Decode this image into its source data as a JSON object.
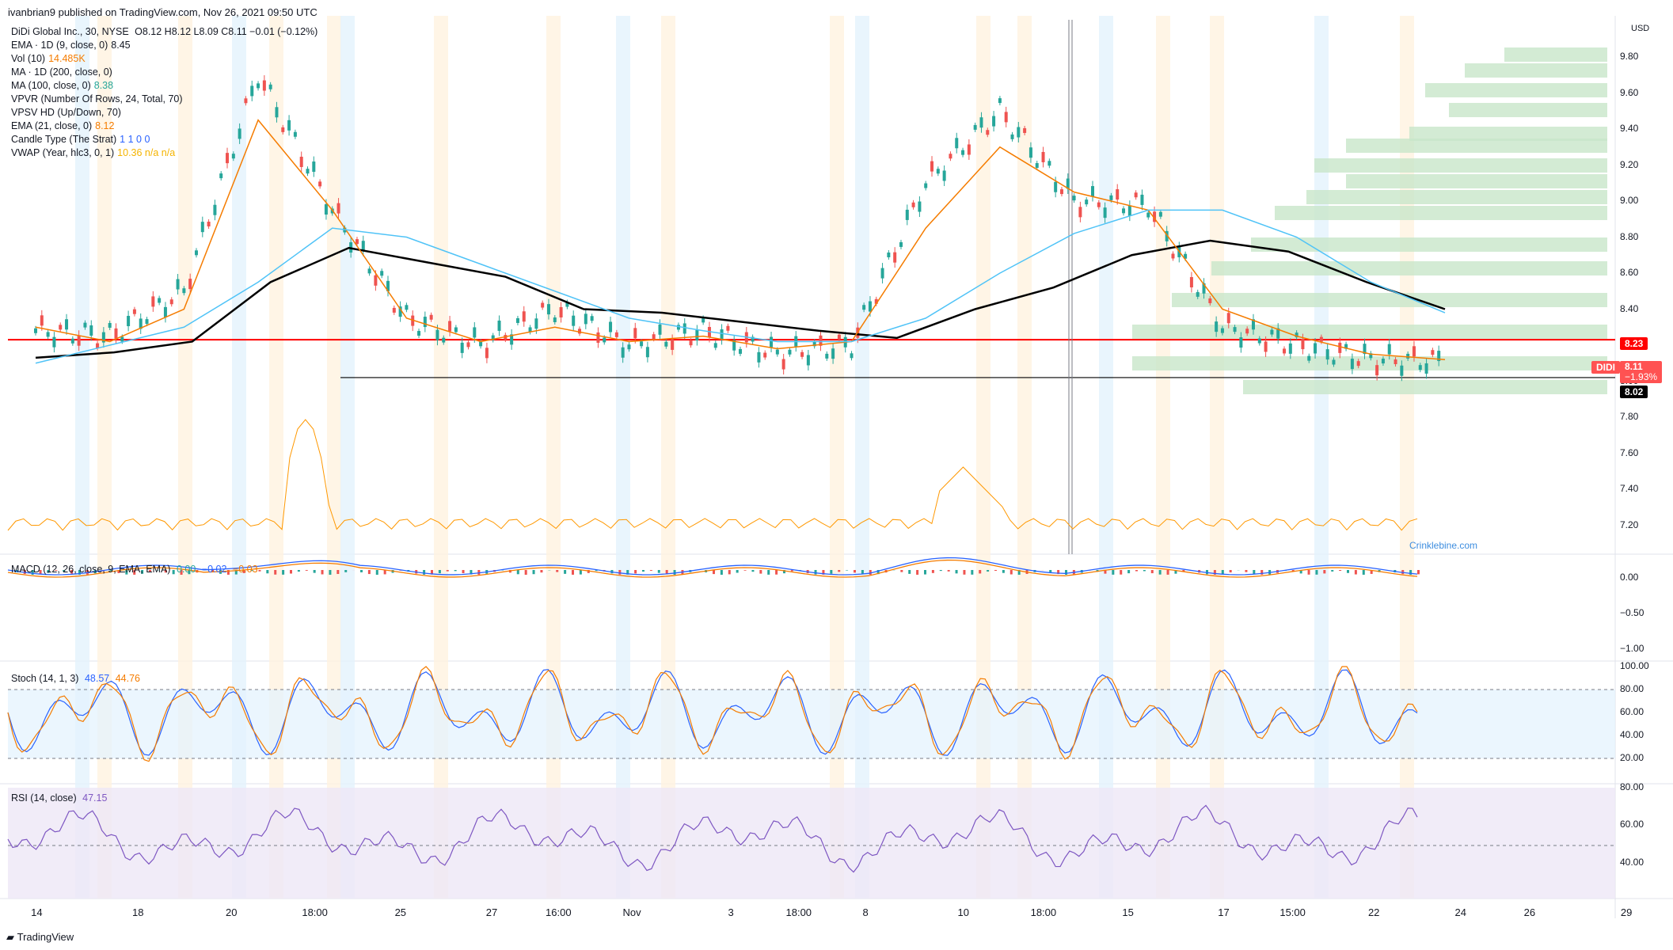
{
  "header": {
    "published": "ivanbrian9 published on TradingView.com, Nov 26, 2021 09:50 UTC",
    "symbol": "DiDi Global Inc., 30, NYSE",
    "ohlc": "O8.12  H8.12  L8.09  C8.11  −0.01 (−0.12%)"
  },
  "legend": [
    {
      "label": "EMA · 1D (9, close, 0)",
      "value": "8.45",
      "color": "#131722"
    },
    {
      "label": "Vol (10)",
      "value": "14.485K",
      "color": "#f57c00"
    },
    {
      "label": "MA · 1D (200, close, 0)",
      "value": "",
      "color": "#131722"
    },
    {
      "label": "MA (100, close, 0)",
      "value": "8.38",
      "color": "#26a69a"
    },
    {
      "label": "VPVR (Number Of Rows, 24, Total, 70)",
      "value": "",
      "color": "#131722"
    },
    {
      "label": "VPSV HD (Up/Down, 70)",
      "value": "",
      "color": "#131722"
    },
    {
      "label": "EMA (21, close, 0)",
      "value": "8.12",
      "color": "#f57c00"
    },
    {
      "label": "Candle Type (The Strat)",
      "value": "1  1  0  0",
      "color": "#2962ff"
    },
    {
      "label": "VWAP (Year, hlc3, 0, 1)",
      "value": "10.36  n/a  n/a",
      "color": "#f5b400"
    }
  ],
  "currency": "USD",
  "price_axis": [
    "9.80",
    "9.60",
    "9.40",
    "9.20",
    "9.00",
    "8.80",
    "8.60",
    "8.40",
    "8.20",
    "8.00",
    "7.80",
    "7.60",
    "7.40",
    "7.20"
  ],
  "price_tags": {
    "level_red": "8.23",
    "symbol": "DIDI",
    "last": "8.11",
    "change": "−1.93%",
    "level_black": "8.02"
  },
  "macd": {
    "label": "MACD (12, 26, close, 9, EMA, EMA)",
    "values": [
      "0.00",
      "−0.02",
      "−0.03"
    ],
    "axis": [
      "0.00",
      "−0.50",
      "−1.00"
    ]
  },
  "stoch": {
    "label": "Stoch (14, 1, 3)",
    "values": [
      "48.57",
      "44.76"
    ],
    "axis": [
      "100.00",
      "80.00",
      "60.00",
      "40.00",
      "20.00"
    ]
  },
  "rsi": {
    "label": "RSI (14, close)",
    "value": "47.15",
    "axis": [
      "80.00",
      "60.00",
      "40.00"
    ]
  },
  "x_axis": [
    {
      "t": "14",
      "x": 33
    },
    {
      "t": "18",
      "x": 124
    },
    {
      "t": "20",
      "x": 208
    },
    {
      "t": "18:00",
      "x": 283
    },
    {
      "t": "25",
      "x": 360
    },
    {
      "t": "27",
      "x": 442
    },
    {
      "t": "16:00",
      "x": 502
    },
    {
      "t": "Nov",
      "x": 568
    },
    {
      "t": "3",
      "x": 657
    },
    {
      "t": "18:00",
      "x": 718
    },
    {
      "t": "8",
      "x": 778
    },
    {
      "t": "10",
      "x": 866
    },
    {
      "t": "18:00",
      "x": 938
    },
    {
      "t": "15",
      "x": 1014
    },
    {
      "t": "17",
      "x": 1100
    },
    {
      "t": "15:00",
      "x": 1162
    },
    {
      "t": "22",
      "x": 1235
    },
    {
      "t": "24",
      "x": 1313
    },
    {
      "t": "26",
      "x": 1375
    },
    {
      "t": "29",
      "x": 1462
    }
  ],
  "watermark": "Crinklebine.com",
  "footer": "TradingView",
  "chart_data": {
    "type": "line",
    "title": "DiDi Global Inc., 30, NYSE",
    "ylabel": "USD",
    "ylim": [
      7.1,
      9.9
    ],
    "series": [
      {
        "name": "Price",
        "x": [
          "Oct 14",
          "Oct 18",
          "Oct 20",
          "Oct 21",
          "Oct 25",
          "Oct 27",
          "Oct 28",
          "Nov 1",
          "Nov 3",
          "Nov 5",
          "Nov 8",
          "Nov 10",
          "Nov 11",
          "Nov 12",
          "Nov 15",
          "Nov 17",
          "Nov 18",
          "Nov 22",
          "Nov 24",
          "Nov 25"
        ],
        "values": [
          8.28,
          8.25,
          8.5,
          9.7,
          8.95,
          8.35,
          8.2,
          8.4,
          8.2,
          8.28,
          8.15,
          8.2,
          9.1,
          9.5,
          9.0,
          8.98,
          8.3,
          8.2,
          8.12,
          8.11
        ]
      },
      {
        "name": "EMA · 1D (9, close, 0)",
        "x": [
          "Oct 14",
          "Oct 18",
          "Oct 20",
          "Oct 21",
          "Oct 25",
          "Oct 27",
          "Oct 28",
          "Nov 1",
          "Nov 3",
          "Nov 5",
          "Nov 8",
          "Nov 10",
          "Nov 11",
          "Nov 12",
          "Nov 15",
          "Nov 17",
          "Nov 18",
          "Nov 22",
          "Nov 24"
        ],
        "values": [
          8.13,
          8.16,
          8.22,
          8.55,
          8.74,
          8.66,
          8.58,
          8.4,
          8.38,
          8.33,
          8.28,
          8.24,
          8.4,
          8.52,
          8.7,
          8.78,
          8.72,
          8.55,
          8.4
        ]
      },
      {
        "name": "EMA (21, close, 0)",
        "x": [
          "Oct 14",
          "Oct 18",
          "Oct 20",
          "Oct 21",
          "Oct 25",
          "Oct 27",
          "Oct 28",
          "Nov 1",
          "Nov 3",
          "Nov 5",
          "Nov 8",
          "Nov 10",
          "Nov 11",
          "Nov 12",
          "Nov 15",
          "Nov 17",
          "Nov 18",
          "Nov 22",
          "Nov 24",
          "Nov 25"
        ],
        "values": [
          8.3,
          8.22,
          8.4,
          9.45,
          8.95,
          8.35,
          8.22,
          8.3,
          8.22,
          8.25,
          8.18,
          8.22,
          8.85,
          9.3,
          9.05,
          8.95,
          8.4,
          8.25,
          8.15,
          8.12
        ]
      },
      {
        "name": "MA (100, close, 0)",
        "x": [
          "Oct 14",
          "Oct 18",
          "Oct 20",
          "Oct 21",
          "Oct 25",
          "Oct 27",
          "Oct 28",
          "Nov 1",
          "Nov 3",
          "Nov 5",
          "Nov 8",
          "Nov 10",
          "Nov 11",
          "Nov 12",
          "Nov 15",
          "Nov 17",
          "Nov 18",
          "Nov 22",
          "Nov 24",
          "Nov 25"
        ],
        "values": [
          8.1,
          8.2,
          8.3,
          8.55,
          8.85,
          8.8,
          8.65,
          8.5,
          8.35,
          8.28,
          8.22,
          8.22,
          8.35,
          8.6,
          8.82,
          8.95,
          8.95,
          8.8,
          8.55,
          8.38
        ]
      }
    ],
    "hlines": [
      {
        "value": 8.23,
        "color": "#ff0000"
      },
      {
        "value": 8.02,
        "color": "#000000"
      }
    ]
  }
}
